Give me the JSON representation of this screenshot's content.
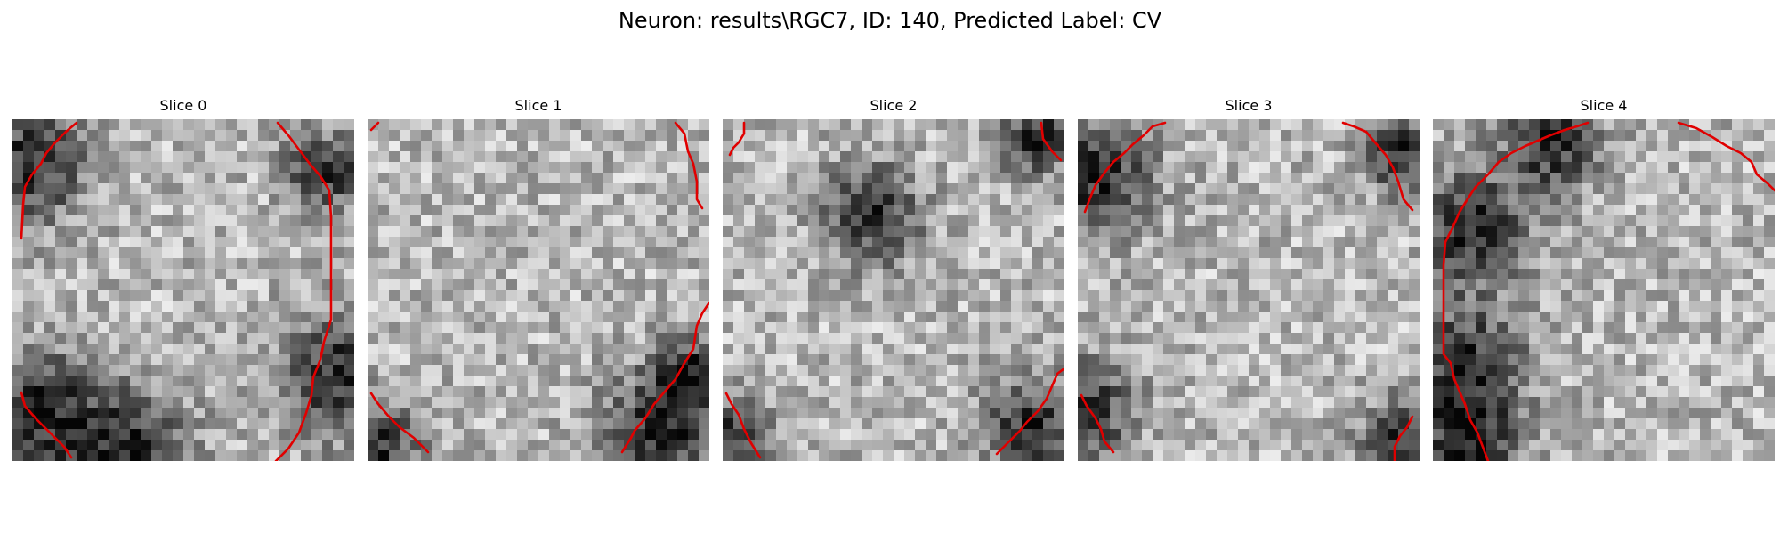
{
  "figure": {
    "title": "Neuron: results\\RGC7, ID: 140, Predicted Label: CV",
    "panels": [
      {
        "title": "Slice 0",
        "seed": 11,
        "dark_zones": [
          [
            0.05,
            0.13,
            0.12
          ],
          [
            0.08,
            0.86,
            0.13
          ],
          [
            0.35,
            0.97,
            0.12
          ],
          [
            0.92,
            0.15,
            0.08
          ],
          [
            0.97,
            0.75,
            0.13
          ]
        ]
      },
      {
        "title": "Slice 1",
        "seed": 23,
        "dark_zones": [
          [
            0.02,
            0.97,
            0.1
          ],
          [
            0.85,
            0.93,
            0.12
          ],
          [
            0.95,
            0.75,
            0.08
          ]
        ]
      },
      {
        "title": "Slice 2",
        "seed": 37,
        "dark_zones": [
          [
            0.44,
            0.28,
            0.1
          ],
          [
            0.9,
            0.9,
            0.1
          ],
          [
            0.0,
            0.95,
            0.1
          ],
          [
            0.92,
            0.05,
            0.08
          ]
        ]
      },
      {
        "title": "Slice 3",
        "seed": 51,
        "dark_zones": [
          [
            0.05,
            0.17,
            0.12
          ],
          [
            0.02,
            0.85,
            0.1
          ],
          [
            0.95,
            0.1,
            0.08
          ],
          [
            0.95,
            0.93,
            0.08
          ]
        ]
      },
      {
        "title": "Slice 4",
        "seed": 67,
        "dark_zones": [
          [
            0.1,
            0.32,
            0.12
          ],
          [
            0.1,
            0.72,
            0.12
          ],
          [
            0.35,
            0.07,
            0.1
          ],
          [
            0.1,
            0.95,
            0.1
          ]
        ]
      }
    ]
  }
}
